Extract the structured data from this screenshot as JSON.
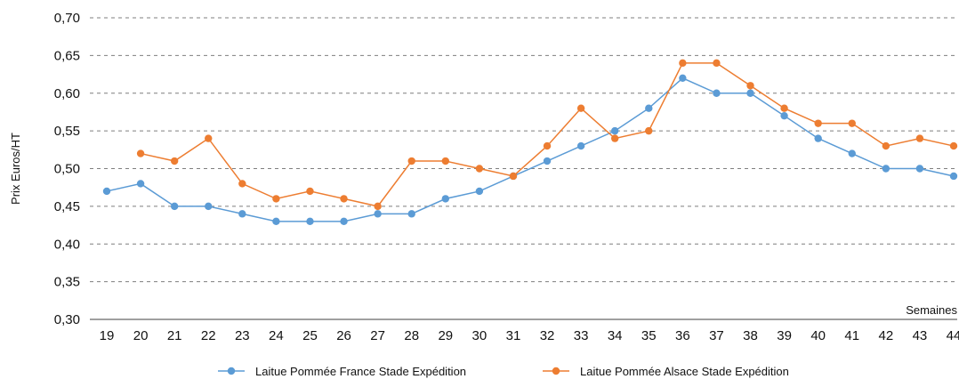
{
  "chart_data": {
    "type": "line",
    "title": "",
    "xlabel": "Semaines",
    "ylabel": "Prix Euros/HT",
    "categories": [
      "19",
      "20",
      "21",
      "22",
      "23",
      "24",
      "25",
      "26",
      "27",
      "28",
      "29",
      "30",
      "31",
      "32",
      "33",
      "34",
      "35",
      "36",
      "37",
      "38",
      "39",
      "40",
      "41",
      "42",
      "43",
      "44"
    ],
    "ylim": [
      0.3,
      0.7
    ],
    "yticks": [
      "0,30",
      "0,35",
      "0,40",
      "0,45",
      "0,50",
      "0,55",
      "0,60",
      "0,65",
      "0,70"
    ],
    "grid": "horizontal-dashed",
    "legend_position": "bottom",
    "series": [
      {
        "name": "Laitue Pommée France Stade Expédition",
        "color": "#5b9bd5",
        "values": [
          0.47,
          0.48,
          0.45,
          0.45,
          0.44,
          0.43,
          0.43,
          0.43,
          0.44,
          0.44,
          0.46,
          0.47,
          0.49,
          0.51,
          0.53,
          0.55,
          0.58,
          0.62,
          0.6,
          0.6,
          0.57,
          0.54,
          0.52,
          0.5,
          0.5,
          0.49
        ]
      },
      {
        "name": "Laitue Pommée Alsace Stade Expédition",
        "color": "#ed7d31",
        "values": [
          null,
          0.52,
          0.51,
          0.54,
          0.48,
          0.46,
          0.47,
          0.46,
          0.45,
          0.51,
          0.51,
          0.5,
          0.49,
          0.53,
          0.58,
          0.54,
          0.55,
          0.64,
          0.64,
          0.61,
          0.58,
          0.56,
          0.56,
          0.53,
          0.54,
          0.53
        ]
      }
    ]
  }
}
